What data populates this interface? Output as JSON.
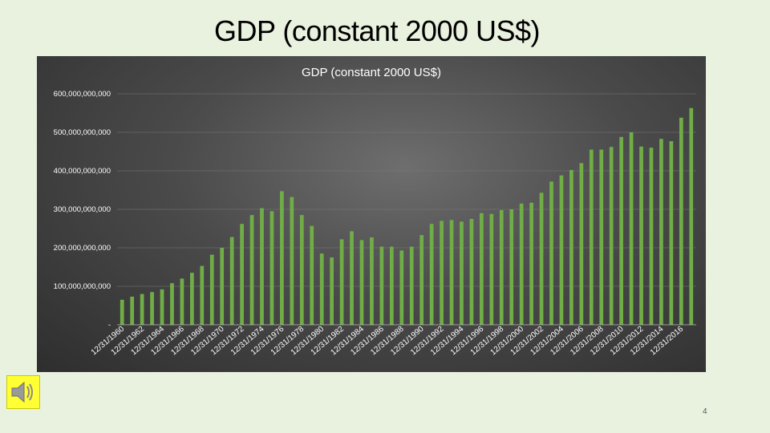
{
  "slide": {
    "title": "GDP (constant 2000 US$)",
    "page_number": "4"
  },
  "icons": {
    "sound": "speaker-icon"
  },
  "colors": {
    "bar": "#70ad47",
    "background": "#e9f1df"
  },
  "chart_data": {
    "type": "bar",
    "title": "GDP (constant 2000 US$)",
    "xlabel": "",
    "ylabel": "",
    "ylim": [
      0,
      600000000000
    ],
    "yticks": [
      {
        "value": 600000000000,
        "label": "600,000,000,000"
      },
      {
        "value": 500000000000,
        "label": "500,000,000,000"
      },
      {
        "value": 400000000000,
        "label": "400,000,000,000"
      },
      {
        "value": 300000000000,
        "label": "300,000,000,000"
      },
      {
        "value": 200000000000,
        "label": "200,000,000,000"
      },
      {
        "value": 100000000000,
        "label": "100,000,000,000"
      },
      {
        "value": 0,
        "label": "-"
      }
    ],
    "grid": true,
    "legend": "none",
    "categories": [
      "12/31/1960",
      "12/31/1961",
      "12/31/1962",
      "12/31/1963",
      "12/31/1964",
      "12/31/1965",
      "12/31/1966",
      "12/31/1967",
      "12/31/1968",
      "12/31/1969",
      "12/31/1970",
      "12/31/1971",
      "12/31/1972",
      "12/31/1973",
      "12/31/1974",
      "12/31/1975",
      "12/31/1976",
      "12/31/1977",
      "12/31/1978",
      "12/31/1979",
      "12/31/1980",
      "12/31/1981",
      "12/31/1982",
      "12/31/1983",
      "12/31/1984",
      "12/31/1985",
      "12/31/1986",
      "12/31/1987",
      "12/31/1988",
      "12/31/1989",
      "12/31/1990",
      "12/31/1991",
      "12/31/1992",
      "12/31/1993",
      "12/31/1994",
      "12/31/1995",
      "12/31/1996",
      "12/31/1997",
      "12/31/1998",
      "12/31/1999",
      "12/31/2000",
      "12/31/2001",
      "12/31/2002",
      "12/31/2003",
      "12/31/2004",
      "12/31/2005",
      "12/31/2006",
      "12/31/2007",
      "12/31/2008",
      "12/31/2009",
      "12/31/2010",
      "12/31/2011",
      "12/31/2012",
      "12/31/2013",
      "12/31/2014",
      "12/31/2015",
      "12/31/2016",
      "12/31/2017"
    ],
    "tick_labels_shown": [
      "12/31/1960",
      "12/31/1962",
      "12/31/1964",
      "12/31/1966",
      "12/31/1968",
      "12/31/1970",
      "12/31/1972",
      "12/31/1974",
      "12/31/1976",
      "12/31/1978",
      "12/31/1980",
      "12/31/1982",
      "12/31/1984",
      "12/31/1986",
      "12/31/1988",
      "12/31/1990",
      "12/31/1992",
      "12/31/1994",
      "12/31/1996",
      "12/31/1998",
      "12/31/2000",
      "12/31/2002",
      "12/31/2004",
      "12/31/2006",
      "12/31/2008",
      "12/31/2010",
      "12/31/2012",
      "12/31/2014",
      "12/31/2016"
    ],
    "values": [
      65000000000,
      73000000000,
      80000000000,
      85000000000,
      92000000000,
      108000000000,
      120000000000,
      135000000000,
      153000000000,
      182000000000,
      200000000000,
      228000000000,
      262000000000,
      285000000000,
      303000000000,
      295000000000,
      347000000000,
      332000000000,
      285000000000,
      257000000000,
      185000000000,
      175000000000,
      222000000000,
      243000000000,
      220000000000,
      227000000000,
      203000000000,
      203000000000,
      193000000000,
      203000000000,
      233000000000,
      262000000000,
      270000000000,
      272000000000,
      268000000000,
      275000000000,
      290000000000,
      288000000000,
      298000000000,
      300000000000,
      315000000000,
      317000000000,
      343000000000,
      372000000000,
      388000000000,
      402000000000,
      420000000000,
      455000000000,
      455000000000,
      462000000000,
      488000000000,
      500000000000,
      463000000000,
      460000000000,
      483000000000,
      477000000000,
      538000000000,
      563000000000
    ]
  }
}
